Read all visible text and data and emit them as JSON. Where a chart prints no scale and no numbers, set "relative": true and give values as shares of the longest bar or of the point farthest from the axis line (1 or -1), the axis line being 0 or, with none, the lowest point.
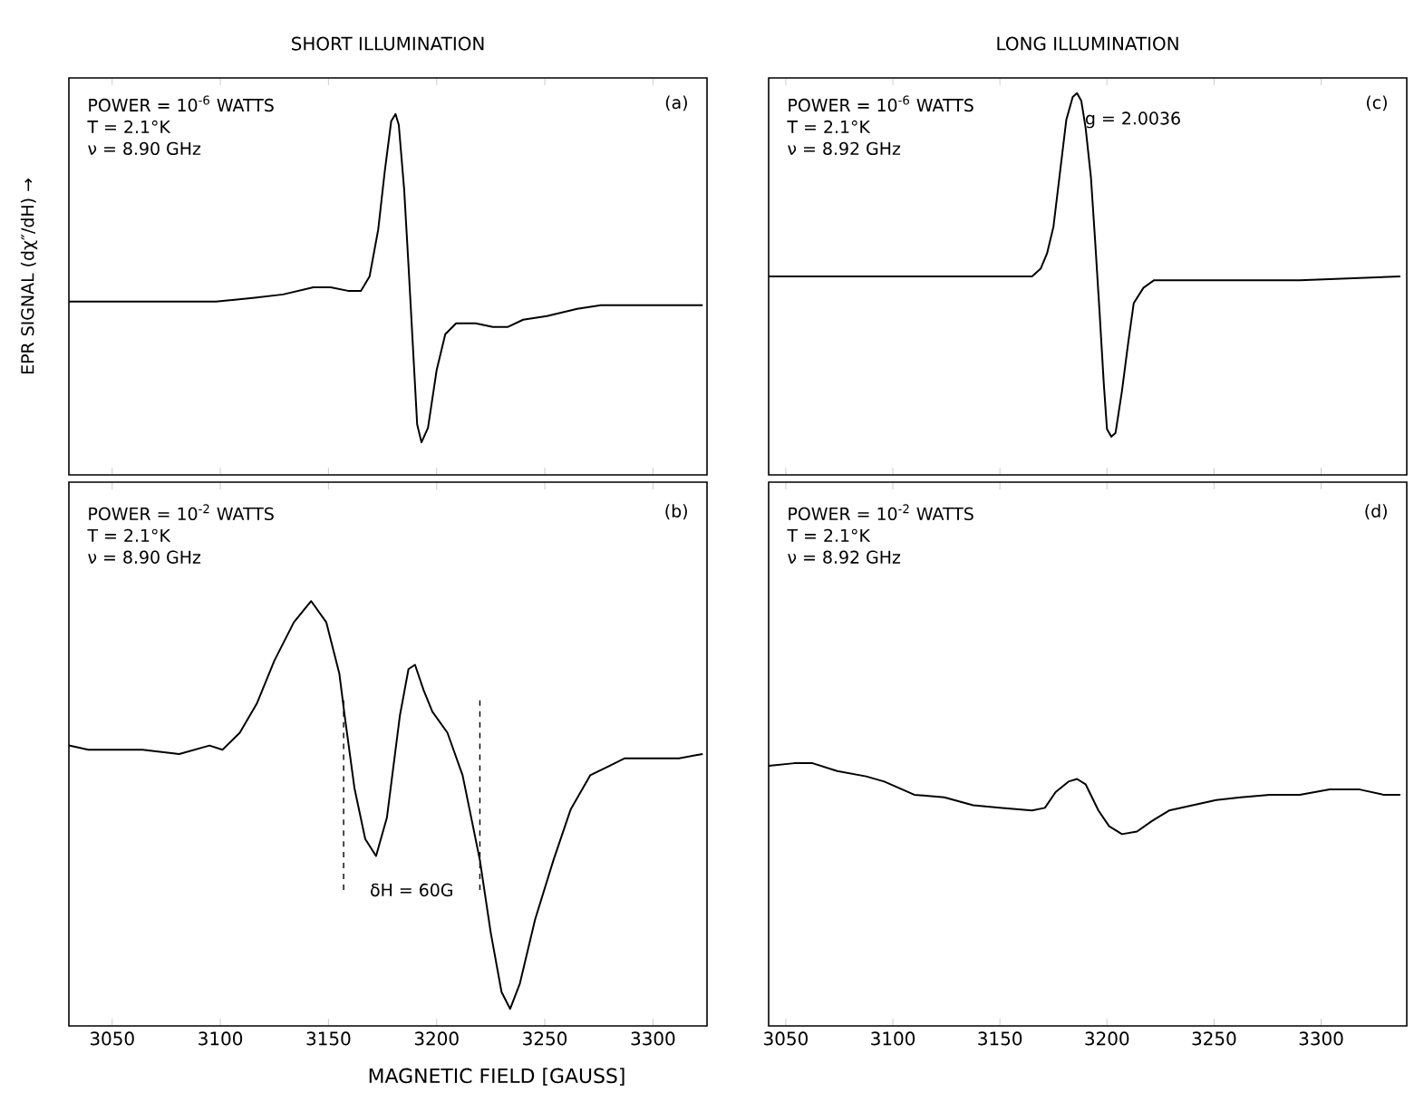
{
  "chart_data": [
    {
      "type": "line",
      "title": "SHORT ILLUMINATION",
      "ylabel": "EPR SIGNAL (dχ″/dH) →",
      "relative": true,
      "xlim": [
        3030,
        3325
      ],
      "xticks": [
        3050,
        3100,
        3150,
        3200,
        3250,
        3300
      ],
      "tick_labels": false,
      "grid": false,
      "annotations": [
        "POWER = 10$^{-6}$ WATTS",
        "T = 2.1°K",
        "ν = 8.90 GHz",
        "(a)"
      ],
      "series": [
        {
          "color": "#000000",
          "x": [
            3030,
            3068,
            3098,
            3115,
            3129,
            3143,
            3151,
            3159,
            3165,
            3169,
            3173,
            3176,
            3179,
            3181,
            3182.5,
            3185,
            3187,
            3189,
            3191,
            3193,
            3196,
            3200,
            3204,
            3209,
            3218,
            3226,
            3233,
            3240,
            3251,
            3265,
            3276,
            3304,
            3323
          ],
          "values": [
            0.48,
            0.48,
            0.48,
            0.49,
            0.5,
            0.52,
            0.52,
            0.51,
            0.51,
            0.55,
            0.68,
            0.84,
            0.98,
            1,
            0.97,
            0.79,
            0.58,
            0.36,
            0.14,
            0.09,
            0.13,
            0.29,
            0.39,
            0.42,
            0.42,
            0.41,
            0.41,
            0.43,
            0.44,
            0.46,
            0.47,
            0.47,
            0.47
          ]
        }
      ]
    },
    {
      "type": "line",
      "xlabel": "MAGNETIC FIELD [GAUSS]",
      "relative": true,
      "xlim": [
        3030,
        3325
      ],
      "xticks": [
        3050,
        3100,
        3150,
        3200,
        3250,
        3300
      ],
      "tick_labels": "x",
      "grid": false,
      "annotations": [
        "POWER = 10$^{-2}$ WATTS",
        "T = 2.1°K",
        "ν = 8.90 GHz",
        "(b)",
        "δH = 60G"
      ],
      "ref_lines": [
        {
          "axis": "x",
          "value": 3157,
          "line_style": "dashed",
          "color": "#000000"
        },
        {
          "axis": "x",
          "value": 3220,
          "line_style": "dashed",
          "color": "#000000"
        }
      ],
      "series": [
        {
          "color": "#000000",
          "x": [
            3030,
            3039,
            3053,
            3064,
            3081,
            3095,
            3101,
            3109,
            3117,
            3125,
            3134,
            3142,
            3149,
            3155,
            3157.5,
            3162,
            3167,
            3172,
            3177,
            3183,
            3187,
            3190,
            3194,
            3198,
            3205,
            3212,
            3218,
            3220,
            3225,
            3230,
            3234,
            3238.5,
            3245.5,
            3254,
            3262,
            3271,
            3279,
            3287,
            3299,
            3312,
            3323
          ],
          "values": [
            0.66,
            0.65,
            0.65,
            0.65,
            0.64,
            0.66,
            0.65,
            0.69,
            0.76,
            0.86,
            0.95,
            1,
            0.95,
            0.83,
            0.73,
            0.56,
            0.44,
            0.4,
            0.49,
            0.73,
            0.84,
            0.85,
            0.79,
            0.74,
            0.69,
            0.59,
            0.44,
            0.39,
            0.22,
            0.08,
            0.04,
            0.1,
            0.25,
            0.39,
            0.51,
            0.59,
            0.61,
            0.63,
            0.63,
            0.63,
            0.64
          ]
        }
      ]
    },
    {
      "type": "line",
      "title": "LONG ILLUMINATION",
      "relative": true,
      "xlim": [
        3042,
        3340
      ],
      "xticks": [
        3050,
        3100,
        3150,
        3200,
        3250,
        3300
      ],
      "tick_labels": false,
      "grid": false,
      "annotations": [
        "POWER = 10$^{-6}$ WATTS",
        "T = 2.1°K",
        "ν = 8.92 GHz",
        "(c)",
        {
          "text": "g = 2.0036",
          "x": 3187,
          "y": 0.93
        }
      ],
      "series": [
        {
          "color": "#000000",
          "x": [
            3042,
            3096,
            3137.5,
            3160,
            3165,
            3169,
            3172,
            3175,
            3178,
            3181,
            3184,
            3186,
            3188,
            3190,
            3192.5,
            3194.5,
            3196.5,
            3198.5,
            3200,
            3202,
            3204,
            3207,
            3210,
            3212.5,
            3217,
            3222,
            3235,
            3262,
            3290,
            3337
          ],
          "values": [
            0.52,
            0.52,
            0.52,
            0.52,
            0.52,
            0.54,
            0.58,
            0.65,
            0.79,
            0.93,
            0.99,
            1,
            0.98,
            0.91,
            0.78,
            0.61,
            0.43,
            0.24,
            0.12,
            0.1,
            0.11,
            0.22,
            0.35,
            0.45,
            0.49,
            0.51,
            0.51,
            0.51,
            0.51,
            0.52
          ]
        }
      ]
    },
    {
      "type": "line",
      "relative": true,
      "xlim": [
        3042,
        3340
      ],
      "xticks": [
        3050,
        3100,
        3150,
        3200,
        3250,
        3300
      ],
      "tick_labels": "x",
      "grid": false,
      "annotations": [
        "POWER = 10$^{-2}$ WATTS",
        "T = 2.1°K",
        "ν = 8.92 GHz",
        "(d)"
      ],
      "series": [
        {
          "color": "#000000",
          "x": [
            3042,
            3054,
            3062.5,
            3074,
            3087.5,
            3096,
            3110,
            3124,
            3137.5,
            3151,
            3165,
            3171,
            3176,
            3182,
            3186,
            3190,
            3196,
            3201,
            3207,
            3214,
            3221,
            3229,
            3240,
            3251,
            3262.5,
            3276,
            3290,
            3304,
            3318,
            3329,
            3337
          ],
          "values": [
            0.99,
            1,
            1,
            0.97,
            0.95,
            0.93,
            0.88,
            0.87,
            0.84,
            0.83,
            0.82,
            0.83,
            0.89,
            0.93,
            0.94,
            0.92,
            0.82,
            0.76,
            0.73,
            0.74,
            0.78,
            0.82,
            0.84,
            0.86,
            0.87,
            0.88,
            0.88,
            0.9,
            0.9,
            0.88,
            0.88
          ]
        }
      ]
    }
  ]
}
